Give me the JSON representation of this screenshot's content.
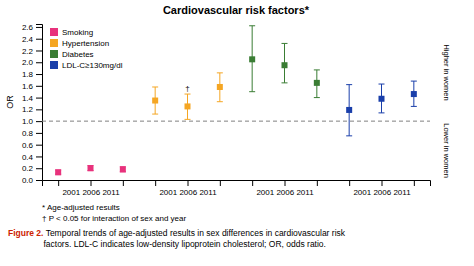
{
  "chart_data": {
    "type": "scatter",
    "marker": "square",
    "title": "Cardiovascular risk factors*",
    "y_label": "OR",
    "categories": [
      null,
      "2001 2006 2011",
      null,
      null,
      "2001 2006 2011",
      null,
      null,
      "2001 2006 2011",
      null,
      null,
      "2001 2006 2011",
      null
    ],
    "ylim": [
      0.0,
      2.65
    ],
    "yticks": [
      {
        "value": 0.0,
        "label": "0.0"
      },
      0.2,
      0.4,
      0.6,
      0.8,
      {
        "value": 1.0,
        "label": "1.0"
      },
      1.2,
      1.4,
      1.6,
      1.8,
      {
        "value": 2.0,
        "label": "2.0"
      },
      2.2,
      2.4,
      2.6
    ],
    "grid": false,
    "legend": "upper left",
    "reference_y": 1.0,
    "side_labels": [
      "Higher in women",
      "Lower in women"
    ],
    "footnotes": [
      "* Age-adjusted results",
      "† P < 0.05 for interaction of sex and year"
    ],
    "caption": {
      "prefix": "Figure 2.",
      "color": "#cc2200",
      "text": " Temporal trends of age-adjusted results in sex differences in cardiovascular risk\nfactors. LDL-C indicates low-density lipoprotein cholesterol; OR, odds ratio."
    },
    "series": [
      {
        "name": "Smoking",
        "color": "#e8327c",
        "values": [
          0.13,
          0.2,
          0.18,
          null,
          null,
          null,
          null,
          null,
          null,
          null,
          null,
          null
        ],
        "ci_low": [
          0.1,
          0.16,
          0.14,
          null,
          null,
          null,
          null,
          null,
          null,
          null,
          null,
          null
        ],
        "ci_high": [
          0.17,
          0.245,
          0.225,
          null,
          null,
          null,
          null,
          null,
          null,
          null,
          null,
          null
        ]
      },
      {
        "name": "Hypertension",
        "color": "#f5a623",
        "values": [
          null,
          null,
          null,
          1.35,
          1.25,
          1.58,
          null,
          null,
          null,
          null,
          null,
          null
        ],
        "ci_low": [
          null,
          null,
          null,
          1.12,
          1.03,
          1.33,
          null,
          null,
          null,
          null,
          null,
          null
        ],
        "ci_high": [
          null,
          null,
          null,
          1.58,
          1.46,
          1.82,
          null,
          null,
          null,
          null,
          null,
          null
        ],
        "annotations": [
          null,
          null,
          null,
          null,
          "†",
          null,
          null,
          null,
          null,
          null,
          null,
          null
        ]
      },
      {
        "name": "Diabetes",
        "color": "#3a7d34",
        "values": [
          null,
          null,
          null,
          null,
          null,
          null,
          2.05,
          1.95,
          1.65,
          null,
          null,
          null
        ],
        "ci_low": [
          null,
          null,
          null,
          null,
          null,
          null,
          1.5,
          1.65,
          1.4,
          null,
          null,
          null
        ],
        "ci_high": [
          null,
          null,
          null,
          null,
          null,
          null,
          2.62,
          2.32,
          1.87,
          null,
          null,
          null
        ]
      },
      {
        "name": "LDL-C≥130mg/dl",
        "color": "#1a3faa",
        "values": [
          null,
          null,
          null,
          null,
          null,
          null,
          null,
          null,
          null,
          1.19,
          1.38,
          1.46
        ],
        "ci_low": [
          null,
          null,
          null,
          null,
          null,
          null,
          null,
          null,
          null,
          0.75,
          1.14,
          1.25
        ],
        "ci_high": [
          null,
          null,
          null,
          null,
          null,
          null,
          null,
          null,
          null,
          1.62,
          1.63,
          1.68
        ]
      }
    ]
  }
}
